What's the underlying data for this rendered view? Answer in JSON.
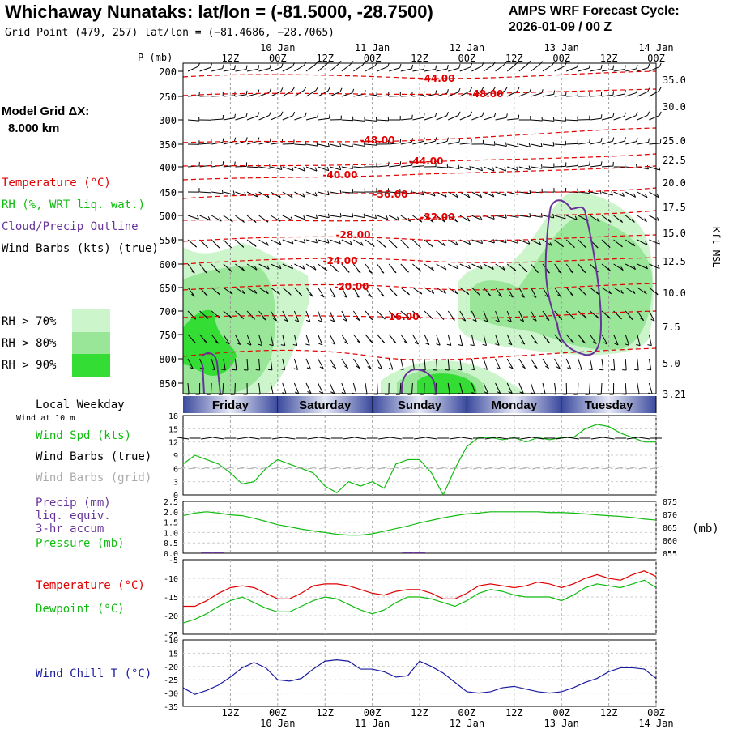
{
  "title": "Whichaway Nunataks:  lat/lon = (-81.5000, -28.7500)",
  "subtitle": "Grid Point (479, 257) lat/lon = (−81.4686, −28.7065)",
  "cycle_line1": "AMPS WRF Forecast Cycle:",
  "cycle_line2": "2026-01-09 / 00  Z",
  "model_grid_line1": "Model Grid ΔX:",
  "model_grid_line2": "8.000 km",
  "legend": {
    "temperature": "Temperature (°C)",
    "rh": "RH (%, WRT liq. wat.)",
    "cloud": "Cloud/Precip Outline",
    "wind": "Wind Barbs (kts) (true)",
    "rh70": "RH > 70%",
    "rh80": "RH > 80%",
    "rh90": "RH > 90%"
  },
  "colors": {
    "rh70": "#ccf5cc",
    "rh80": "#99e699",
    "rh90": "#33dd33",
    "temp": "#e00000",
    "green": "#11bb11",
    "purple": "#663399",
    "navy": "#1a1aa0",
    "grey": "#aaaaaa"
  },
  "time_axis": {
    "hour_labels": [
      "12Z",
      "00Z",
      "12Z",
      "00Z",
      "12Z",
      "00Z",
      "12Z",
      "00Z",
      "12Z",
      "00Z"
    ],
    "date_labels": [
      "10 Jan",
      "11 Jan",
      "12 Jan",
      "13 Jan",
      "14 Jan"
    ],
    "p_unit": "P (mb)"
  },
  "weekdays": [
    "Friday",
    "Saturday",
    "Sunday",
    "Monday",
    "Tuesday"
  ],
  "local_weekday_label": "Local Weekday",
  "wind_at_10m": "Wind at 10 m",
  "panel_labels": {
    "wind_spd": "Wind Spd (kts)",
    "wind_true": "Wind Barbs (true)",
    "wind_grid": "Wind Barbs (grid)",
    "precip1": "Precip (mm)",
    "precip2": "liq. equiv.",
    "precip3": "3-hr accum",
    "pressure": "Pressure (mb)",
    "pressure_unit": "(mb)",
    "temperature": "Temperature (°C)",
    "dewpoint": "Dewpoint (°C)",
    "windchill": "Wind Chill T (°C)",
    "kft": "Kft MSL"
  },
  "chart_data": [
    {
      "type": "heatmap",
      "title": "Time-height cross section",
      "pressure_levels_mb": [
        "200",
        "250",
        "300",
        "350",
        "400",
        "450",
        "500",
        "550",
        "600",
        "650",
        "700",
        "750",
        "800",
        "850"
      ],
      "kft_msl_ticks": [
        "35.0",
        "30.0",
        "25.0",
        "22.5",
        "20.0",
        "17.5",
        "15.0",
        "12.5",
        "10.0",
        "7.5",
        "5.0",
        "3.21"
      ],
      "temperature_contour_labels": [
        "-44.00",
        "-48.00",
        "-48.00",
        "-44.00",
        "-40.00",
        "-36.00",
        "-32.00",
        "-28.00",
        "-24.00",
        "-20.00",
        "-16.00"
      ],
      "xlim_hours": [
        0,
        120
      ]
    },
    {
      "type": "line",
      "title": "Wind speed at 10 m",
      "ylabel": "Wind Spd (kts)",
      "ylim": [
        0,
        18
      ],
      "yticks": [
        "0",
        "3",
        "6",
        "9",
        "12",
        "15",
        "18"
      ],
      "x_hours": [
        0,
        3,
        6,
        9,
        12,
        15,
        18,
        21,
        24,
        27,
        30,
        33,
        36,
        39,
        42,
        45,
        48,
        51,
        54,
        57,
        60,
        63,
        66,
        69,
        72,
        75,
        78,
        81,
        84,
        87,
        90,
        93,
        96,
        99,
        102,
        105,
        108,
        111,
        114,
        117,
        120
      ],
      "series": [
        {
          "name": "Wind Spd",
          "values": [
            7,
            9,
            8,
            7,
            5,
            2.5,
            3,
            6,
            8,
            7,
            6,
            5,
            2,
            0.5,
            3,
            2,
            3,
            1.5,
            7,
            8,
            8,
            5,
            0,
            6,
            11,
            13,
            13,
            12.5,
            13,
            12,
            13,
            12.5,
            13,
            13,
            15,
            16,
            15.5,
            14,
            13,
            12,
            12
          ]
        }
      ]
    },
    {
      "type": "line",
      "title": "Precip and pressure",
      "y1label": "Precip (mm)",
      "y1lim": [
        0,
        2.5
      ],
      "y1ticks": [
        "0.0",
        "0.5",
        "1.0",
        "1.5",
        "2.0",
        "2.5"
      ],
      "y2label": "Pressure (mb)",
      "y2lim": [
        855,
        875
      ],
      "y2ticks": [
        "855",
        "860",
        "865",
        "870",
        "875"
      ],
      "x_hours": [
        0,
        3,
        6,
        9,
        12,
        15,
        18,
        21,
        24,
        27,
        30,
        33,
        36,
        39,
        42,
        45,
        48,
        51,
        54,
        57,
        60,
        63,
        66,
        69,
        72,
        75,
        78,
        81,
        84,
        87,
        90,
        93,
        96,
        99,
        102,
        105,
        108,
        111,
        114,
        117,
        120
      ],
      "series": [
        {
          "name": "Pressure",
          "values": [
            869.5,
            870.5,
            871,
            870.5,
            869.8,
            869.5,
            868.5,
            867.3,
            866,
            865.2,
            864.3,
            863.6,
            863,
            862.3,
            862,
            862,
            862.5,
            863.5,
            864.5,
            865.5,
            866.7,
            867.7,
            868.7,
            869.5,
            870.2,
            870.5,
            871,
            871,
            871,
            871,
            871,
            870.7,
            870.7,
            870.5,
            870.2,
            869.8,
            869.5,
            869.2,
            868.8,
            868.2,
            867.8
          ]
        },
        {
          "name": "Precip",
          "values": [
            0,
            0,
            0.05,
            0.05,
            0,
            0,
            0,
            0,
            0,
            0,
            0,
            0,
            0,
            0,
            0,
            0,
            0,
            0,
            0,
            0.05,
            0.05,
            0,
            0,
            0,
            0,
            0,
            0,
            0,
            0,
            0,
            0,
            0,
            0,
            0,
            0,
            0,
            0,
            0,
            0,
            0,
            0
          ]
        }
      ]
    },
    {
      "type": "line",
      "title": "Temperature and dewpoint",
      "ylim": [
        -25,
        -5
      ],
      "yticks": [
        "-5",
        "-10",
        "-15",
        "-20",
        "-25"
      ],
      "x_hours": [
        0,
        3,
        6,
        9,
        12,
        15,
        18,
        21,
        24,
        27,
        30,
        33,
        36,
        39,
        42,
        45,
        48,
        51,
        54,
        57,
        60,
        63,
        66,
        69,
        72,
        75,
        78,
        81,
        84,
        87,
        90,
        93,
        96,
        99,
        102,
        105,
        108,
        111,
        114,
        117,
        120
      ],
      "series": [
        {
          "name": "Temperature",
          "values": [
            -17.5,
            -17.5,
            -16,
            -14,
            -12.5,
            -12,
            -12.5,
            -14,
            -15.5,
            -15.5,
            -14,
            -12,
            -11.5,
            -11.5,
            -12,
            -13,
            -14,
            -14.5,
            -13.5,
            -13,
            -13,
            -14,
            -15.5,
            -15.5,
            -14,
            -12,
            -11.5,
            -12,
            -12.5,
            -12,
            -11,
            -11.5,
            -12.5,
            -11.5,
            -10,
            -9,
            -10,
            -10.5,
            -9,
            -8,
            -9.5
          ]
        },
        {
          "name": "Dewpoint",
          "values": [
            -22,
            -21,
            -19.5,
            -17.5,
            -16,
            -15,
            -16.5,
            -18,
            -19,
            -19,
            -17.5,
            -16,
            -15,
            -15.5,
            -17,
            -18.5,
            -19.5,
            -18.5,
            -16.5,
            -15,
            -15,
            -15.5,
            -16.5,
            -17.5,
            -16,
            -14,
            -13,
            -13.5,
            -14.5,
            -15,
            -15,
            -15,
            -16,
            -14.5,
            -12.5,
            -11.5,
            -12,
            -12.5,
            -11.5,
            -10.5,
            -12.5
          ]
        }
      ]
    },
    {
      "type": "line",
      "title": "Wind chill",
      "ylabel": "Wind Chill T (°C)",
      "ylim": [
        -35,
        -10
      ],
      "yticks": [
        "-10",
        "-15",
        "-20",
        "-25",
        "-30",
        "-35"
      ],
      "x_hours": [
        0,
        3,
        6,
        9,
        12,
        15,
        18,
        21,
        24,
        27,
        30,
        33,
        36,
        39,
        42,
        45,
        48,
        51,
        54,
        57,
        60,
        63,
        66,
        69,
        72,
        75,
        78,
        81,
        84,
        87,
        90,
        93,
        96,
        99,
        102,
        105,
        108,
        111,
        114,
        117,
        120
      ],
      "series": [
        {
          "name": "Wind Chill",
          "values": [
            -28,
            -30.5,
            -29,
            -27,
            -24,
            -20.5,
            -18.5,
            -20.5,
            -25,
            -25.5,
            -24.5,
            -21,
            -18,
            -17.5,
            -18,
            -21,
            -21,
            -22,
            -24,
            -23.5,
            -18,
            -20,
            -22.5,
            -26,
            -29.5,
            -30,
            -29.5,
            -28,
            -27.5,
            -28.5,
            -29.5,
            -30,
            -29.5,
            -28,
            -26,
            -24.5,
            -22,
            -20.5,
            -20.5,
            -21,
            -24.5
          ]
        }
      ]
    }
  ]
}
